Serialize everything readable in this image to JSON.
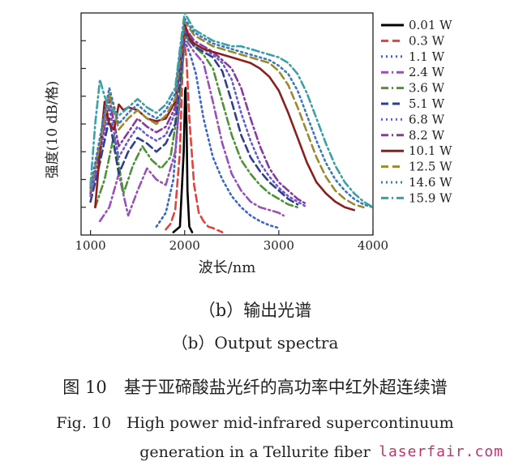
{
  "chart_data": {
    "type": "line",
    "title": "",
    "xlabel": "波长/nm",
    "ylabel": "强度(10 dB/格)",
    "xlim": [
      900,
      4000
    ],
    "ylim": [
      0,
      8
    ],
    "xticks": [
      1000,
      2000,
      3000,
      4000
    ],
    "grid": false,
    "legend_position": "right",
    "series": [
      {
        "name": "0.01 W",
        "color": "#000000",
        "dash": "solid",
        "x": [
          1880,
          1950,
          1990,
          2005,
          2010,
          2020,
          2030,
          2050,
          2080
        ],
        "y": [
          0.1,
          0.3,
          3.0,
          5.2,
          5.3,
          4.0,
          1.6,
          0.3,
          0.1
        ]
      },
      {
        "name": "0.3 W",
        "color": "#e8403a",
        "dash": "dash",
        "x": [
          1800,
          1850,
          1900,
          1950,
          1980,
          2000,
          2020,
          2050,
          2100,
          2150,
          2200,
          2250,
          2300,
          2400
        ],
        "y": [
          0.2,
          0.4,
          0.9,
          3.0,
          6.2,
          6.9,
          6.3,
          4.2,
          1.8,
          0.8,
          0.5,
          0.3,
          0.25,
          0.1
        ]
      },
      {
        "name": "1.1 W",
        "color": "#3a66c8",
        "dash": "dot",
        "x": [
          1700,
          1800,
          1880,
          1950,
          2000,
          2060,
          2120,
          2200,
          2300,
          2400,
          2500,
          2600,
          2700,
          2800,
          2900,
          3000
        ],
        "y": [
          0.3,
          0.8,
          2.0,
          5.0,
          7.0,
          6.5,
          5.8,
          4.2,
          2.8,
          2.0,
          1.4,
          1.0,
          0.7,
          0.5,
          0.35,
          0.25
        ]
      },
      {
        "name": "2.4 W",
        "color": "#9b4fb8",
        "dash": "dashdot",
        "x": [
          1100,
          1200,
          1300,
          1400,
          1500,
          1600,
          1700,
          1800,
          1900,
          1950,
          2000,
          2100,
          2200,
          2300,
          2400,
          2500,
          2600,
          2700,
          2800,
          2900,
          3000,
          3050
        ],
        "y": [
          0.5,
          1.0,
          2.2,
          0.7,
          1.6,
          2.4,
          2.0,
          1.8,
          3.0,
          4.9,
          7.1,
          6.6,
          6.2,
          4.8,
          3.3,
          2.2,
          1.6,
          1.2,
          1.0,
          0.9,
          0.8,
          0.7
        ]
      },
      {
        "name": "3.6 W",
        "color": "#4f9138",
        "dash": "dashdot",
        "x": [
          1050,
          1150,
          1250,
          1350,
          1450,
          1550,
          1650,
          1750,
          1850,
          1950,
          2000,
          2100,
          2200,
          2300,
          2400,
          2500,
          2600,
          2700,
          2800,
          2900,
          3000,
          3100,
          3200
        ],
        "y": [
          1.0,
          2.0,
          3.6,
          1.5,
          2.5,
          3.2,
          2.7,
          2.4,
          2.8,
          5.0,
          7.2,
          6.8,
          6.5,
          6.0,
          4.8,
          3.6,
          2.7,
          2.2,
          1.8,
          1.5,
          1.3,
          1.1,
          1.0
        ]
      },
      {
        "name": "5.1 W",
        "color": "#2e3f8f",
        "dash": "dash",
        "x": [
          1000,
          1100,
          1200,
          1300,
          1400,
          1500,
          1600,
          1700,
          1800,
          1900,
          1950,
          2000,
          2100,
          2200,
          2300,
          2400,
          2500,
          2600,
          2700,
          2800,
          2900,
          3000,
          3100,
          3200
        ],
        "y": [
          1.2,
          2.6,
          4.2,
          2.2,
          3.0,
          3.5,
          3.3,
          3.0,
          3.3,
          4.0,
          5.5,
          7.3,
          6.8,
          6.6,
          6.4,
          5.9,
          4.8,
          3.6,
          2.8,
          2.3,
          1.9,
          1.6,
          1.3,
          1.1
        ]
      },
      {
        "name": "6.8 W",
        "color": "#6a5ad0",
        "dash": "dot",
        "x": [
          1000,
          1100,
          1200,
          1300,
          1400,
          1500,
          1600,
          1700,
          1800,
          1900,
          1950,
          2000,
          2100,
          2200,
          2300,
          2400,
          2500,
          2600,
          2700,
          2800,
          2900,
          3000,
          3100,
          3200,
          3300
        ],
        "y": [
          1.4,
          2.9,
          4.6,
          2.8,
          3.4,
          3.9,
          3.6,
          3.4,
          3.6,
          4.4,
          5.9,
          7.4,
          6.9,
          6.7,
          6.5,
          6.2,
          5.6,
          4.4,
          3.4,
          2.6,
          2.1,
          1.7,
          1.4,
          1.2,
          1.0
        ]
      },
      {
        "name": "8.2 W",
        "color": "#8a3a9e",
        "dash": "dashdot",
        "x": [
          1000,
          1100,
          1200,
          1300,
          1400,
          1500,
          1600,
          1700,
          1800,
          1900,
          1950,
          2000,
          2100,
          2200,
          2300,
          2400,
          2500,
          2600,
          2700,
          2800,
          2900,
          3000,
          3100,
          3200,
          3300
        ],
        "y": [
          1.5,
          3.1,
          4.9,
          3.2,
          3.7,
          4.2,
          3.9,
          3.7,
          3.9,
          4.6,
          6.1,
          7.5,
          7.0,
          6.8,
          6.6,
          6.3,
          6.0,
          5.3,
          4.2,
          3.2,
          2.4,
          1.9,
          1.6,
          1.3,
          1.1
        ]
      },
      {
        "name": "10.1 W",
        "color": "#8b1f1f",
        "dash": "solid",
        "x": [
          1050,
          1100,
          1150,
          1200,
          1250,
          1300,
          1350,
          1400,
          1500,
          1600,
          1700,
          1800,
          1900,
          1950,
          2000,
          2050,
          2100,
          2200,
          2300,
          2400,
          2500,
          2600,
          2700,
          2800,
          2900,
          3000,
          3100,
          3200,
          3300,
          3400,
          3500,
          3600,
          3700,
          3800
        ],
        "y": [
          1.0,
          3.0,
          4.8,
          4.0,
          3.8,
          4.7,
          4.5,
          4.6,
          4.5,
          4.2,
          4.1,
          4.2,
          4.8,
          6.2,
          7.6,
          7.1,
          6.9,
          6.7,
          6.6,
          6.5,
          6.4,
          6.3,
          6.2,
          6.0,
          5.7,
          5.2,
          4.4,
          3.5,
          2.6,
          1.9,
          1.5,
          1.2,
          1.0,
          0.9
        ]
      },
      {
        "name": "12.5 W",
        "color": "#9b8a2e",
        "dash": "dash",
        "x": [
          1000,
          1100,
          1200,
          1300,
          1400,
          1500,
          1600,
          1700,
          1800,
          1900,
          1950,
          2000,
          2100,
          2200,
          2300,
          2400,
          2500,
          2600,
          2700,
          2800,
          2900,
          3000,
          3100,
          3200,
          3300,
          3400,
          3500,
          3600,
          3700,
          3800,
          3900
        ],
        "y": [
          1.6,
          3.3,
          5.1,
          3.8,
          4.2,
          4.5,
          4.2,
          4.0,
          4.3,
          4.9,
          6.3,
          7.7,
          7.2,
          7.0,
          6.8,
          6.7,
          6.6,
          6.5,
          6.4,
          6.3,
          6.2,
          5.9,
          5.4,
          4.6,
          3.7,
          2.8,
          2.1,
          1.6,
          1.3,
          1.1,
          1.0
        ]
      },
      {
        "name": "14.6 W",
        "color": "#3a78c0",
        "dash": "dot",
        "x": [
          1000,
          1100,
          1200,
          1300,
          1400,
          1500,
          1600,
          1700,
          1800,
          1900,
          1950,
          2000,
          2100,
          2200,
          2300,
          2400,
          2500,
          2600,
          2700,
          2800,
          2900,
          3000,
          3100,
          3200,
          3300,
          3400,
          3500,
          3600,
          3700,
          3800,
          3900,
          4000
        ],
        "y": [
          1.7,
          3.5,
          5.3,
          4.0,
          4.4,
          4.7,
          4.4,
          4.2,
          4.5,
          5.1,
          6.5,
          7.8,
          7.3,
          7.1,
          6.9,
          6.8,
          6.7,
          6.6,
          6.5,
          6.4,
          6.3,
          6.1,
          5.8,
          5.2,
          4.3,
          3.4,
          2.6,
          2.0,
          1.6,
          1.3,
          1.1,
          1.0
        ]
      },
      {
        "name": "15.9 W",
        "color": "#3aa0a8",
        "dash": "dashdot",
        "x": [
          1000,
          1050,
          1100,
          1150,
          1200,
          1300,
          1400,
          1500,
          1600,
          1700,
          1800,
          1900,
          1950,
          2000,
          2100,
          2200,
          2300,
          2400,
          2500,
          2600,
          2700,
          2800,
          2900,
          3000,
          3100,
          3200,
          3300,
          3400,
          3500,
          3600,
          3700,
          3800,
          3900,
          4000
        ],
        "y": [
          1.8,
          4.0,
          5.6,
          5.0,
          4.6,
          4.3,
          4.6,
          4.9,
          4.6,
          4.4,
          4.7,
          5.3,
          6.7,
          8.0,
          7.4,
          7.2,
          7.0,
          6.9,
          6.8,
          6.8,
          6.7,
          6.6,
          6.5,
          6.4,
          6.2,
          5.8,
          5.1,
          4.2,
          3.3,
          2.5,
          1.9,
          1.5,
          1.2,
          1.0
        ]
      }
    ]
  },
  "captions": {
    "sub_cn": "（b）输出光谱",
    "sub_en": "（b）Output spectra",
    "fig_cn": "图 10　基于亚碲酸盐光纤的高功率中红外超连续谱",
    "fig_en_line1": "Fig. 10　High power mid-infrared supercontinuum",
    "fig_en_line2": "generation in a Tellurite fiber"
  },
  "watermark": "laserfair.com"
}
